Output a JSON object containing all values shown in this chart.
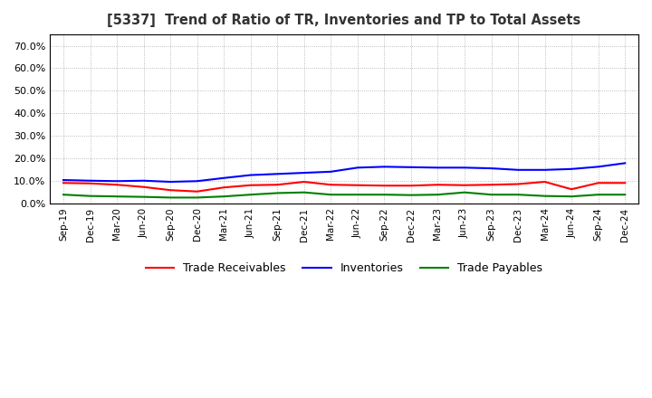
{
  "title": "[5337]  Trend of Ratio of TR, Inventories and TP to Total Assets",
  "x_labels": [
    "Sep-19",
    "Dec-19",
    "Mar-20",
    "Jun-20",
    "Sep-20",
    "Dec-20",
    "Mar-21",
    "Jun-21",
    "Sep-21",
    "Dec-21",
    "Mar-22",
    "Jun-22",
    "Sep-22",
    "Dec-22",
    "Mar-23",
    "Jun-23",
    "Sep-23",
    "Dec-23",
    "Mar-24",
    "Jun-24",
    "Sep-24",
    "Dec-24"
  ],
  "trade_receivables": [
    0.09,
    0.088,
    0.082,
    0.072,
    0.058,
    0.052,
    0.07,
    0.08,
    0.082,
    0.095,
    0.082,
    0.08,
    0.078,
    0.078,
    0.082,
    0.08,
    0.082,
    0.085,
    0.095,
    0.062,
    0.09,
    0.09
  ],
  "inventories": [
    0.103,
    0.1,
    0.098,
    0.1,
    0.095,
    0.098,
    0.112,
    0.125,
    0.13,
    0.135,
    0.14,
    0.158,
    0.162,
    0.16,
    0.158,
    0.158,
    0.155,
    0.148,
    0.148,
    0.152,
    0.162,
    0.178
  ],
  "trade_payables": [
    0.038,
    0.032,
    0.03,
    0.028,
    0.025,
    0.025,
    0.03,
    0.038,
    0.045,
    0.048,
    0.038,
    0.038,
    0.038,
    0.036,
    0.038,
    0.048,
    0.038,
    0.038,
    0.032,
    0.03,
    0.038,
    0.038
  ],
  "ylim": [
    0.0,
    0.75
  ],
  "yticks": [
    0.0,
    0.1,
    0.2,
    0.3,
    0.4,
    0.5,
    0.6,
    0.7
  ],
  "colors": {
    "trade_receivables": "#ff0000",
    "inventories": "#0000ff",
    "trade_payables": "#008000"
  },
  "background_color": "#ffffff",
  "grid_color": "#aaaaaa"
}
